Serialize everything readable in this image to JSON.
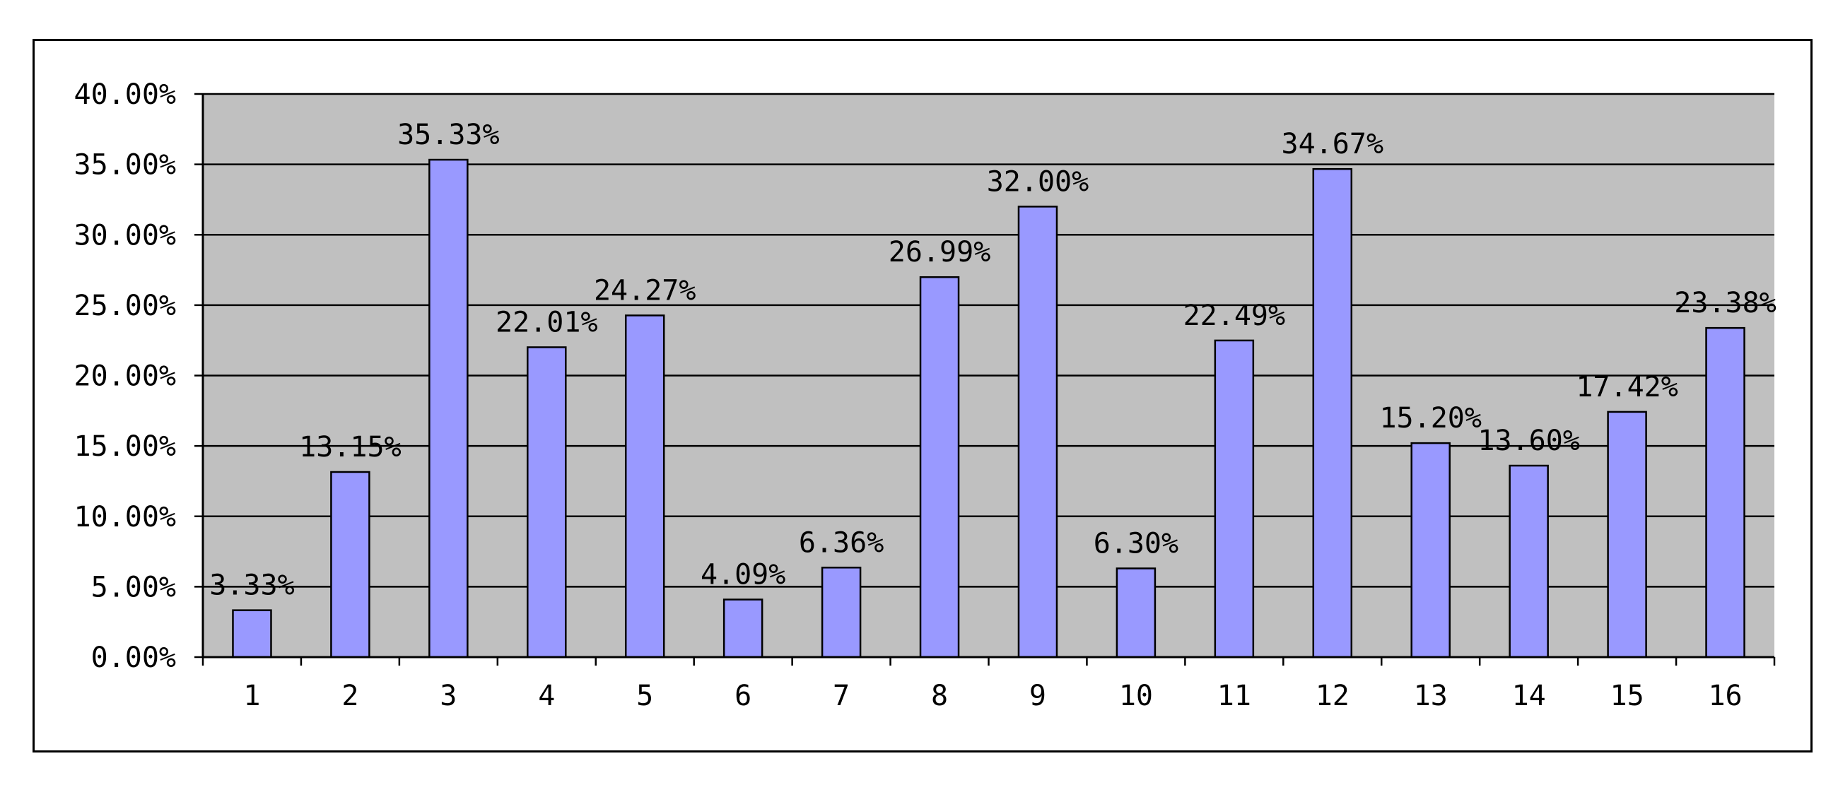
{
  "chart_data": {
    "type": "bar",
    "title": "",
    "xlabel": "",
    "ylabel": "",
    "categories": [
      "1",
      "2",
      "3",
      "4",
      "5",
      "6",
      "7",
      "8",
      "9",
      "10",
      "11",
      "12",
      "13",
      "14",
      "15",
      "16"
    ],
    "values": [
      3.33,
      13.15,
      35.33,
      22.01,
      24.27,
      4.09,
      6.36,
      26.99,
      32.0,
      6.3,
      22.49,
      34.67,
      15.2,
      13.6,
      17.42,
      23.38
    ],
    "data_labels": [
      "3.33%",
      "13.15%",
      "35.33%",
      "22.01%",
      "24.27%",
      "4.09%",
      "6.36%",
      "26.99%",
      "32.00%",
      "6.30%",
      "22.49%",
      "34.67%",
      "15.20%",
      "13.60%",
      "17.42%",
      "23.38%"
    ],
    "ylim": [
      0,
      40
    ],
    "y_ticks": [
      0,
      5,
      10,
      15,
      20,
      25,
      30,
      35,
      40
    ],
    "y_tick_labels": [
      "0.00%",
      "5.00%",
      "10.00%",
      "15.00%",
      "20.00%",
      "25.00%",
      "30.00%",
      "35.00%",
      "40.00%"
    ],
    "grid": true,
    "legend": "none",
    "colors": {
      "bar_fill": "#9999ff",
      "bar_stroke": "#000000",
      "plot_background": "#c0c0c0",
      "gridline": "#000000"
    }
  }
}
